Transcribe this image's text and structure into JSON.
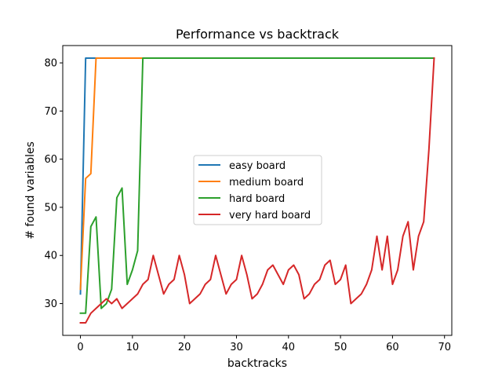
{
  "chart_data": {
    "type": "line",
    "title": "Performance vs backtrack",
    "xlabel": "backtracks",
    "ylabel": "# found variables",
    "xlim": [
      -3.4,
      71.4
    ],
    "ylim": [
      23.4,
      83.6
    ],
    "xticks": [
      0,
      10,
      20,
      30,
      40,
      50,
      60,
      70
    ],
    "yticks": [
      30,
      40,
      50,
      60,
      70,
      80
    ],
    "grid": false,
    "legend_position": "center",
    "series": [
      {
        "name": "easy board",
        "color": "#1f77b4",
        "x": [
          0,
          1,
          2,
          3,
          68
        ],
        "y": [
          32,
          81,
          81,
          81,
          81
        ]
      },
      {
        "name": "medium board",
        "color": "#ff7f0e",
        "x": [
          0,
          1,
          2,
          3,
          4,
          68
        ],
        "y": [
          33,
          56,
          57,
          81,
          81,
          81
        ]
      },
      {
        "name": "hard board",
        "color": "#2ca02c",
        "x": [
          0,
          1,
          2,
          3,
          4,
          5,
          6,
          7,
          8,
          9,
          10,
          11,
          12,
          13,
          68
        ],
        "y": [
          28,
          28,
          46,
          48,
          29,
          30,
          33,
          52,
          54,
          34,
          37,
          41,
          81,
          81,
          81
        ]
      },
      {
        "name": "very hard board",
        "color": "#d62728",
        "x": [
          0,
          1,
          2,
          3,
          4,
          5,
          6,
          7,
          8,
          9,
          10,
          11,
          12,
          13,
          14,
          15,
          16,
          17,
          18,
          19,
          20,
          21,
          22,
          23,
          24,
          25,
          26,
          27,
          28,
          29,
          30,
          31,
          32,
          33,
          34,
          35,
          36,
          37,
          38,
          39,
          40,
          41,
          42,
          43,
          44,
          45,
          46,
          47,
          48,
          49,
          50,
          51,
          52,
          53,
          54,
          55,
          56,
          57,
          58,
          59,
          60,
          61,
          62,
          63,
          64,
          65,
          66,
          67,
          68
        ],
        "y": [
          26,
          26,
          28,
          29,
          30,
          31,
          30,
          31,
          29,
          30,
          31,
          32,
          34,
          35,
          40,
          36,
          32,
          34,
          35,
          40,
          36,
          30,
          31,
          32,
          34,
          35,
          40,
          36,
          32,
          34,
          35,
          40,
          36,
          31,
          32,
          34,
          37,
          38,
          36,
          34,
          37,
          38,
          36,
          31,
          32,
          34,
          35,
          38,
          39,
          34,
          35,
          38,
          30,
          31,
          32,
          34,
          37,
          44,
          37,
          44,
          34,
          37,
          44,
          47,
          37,
          44,
          47,
          62,
          81
        ]
      }
    ]
  }
}
